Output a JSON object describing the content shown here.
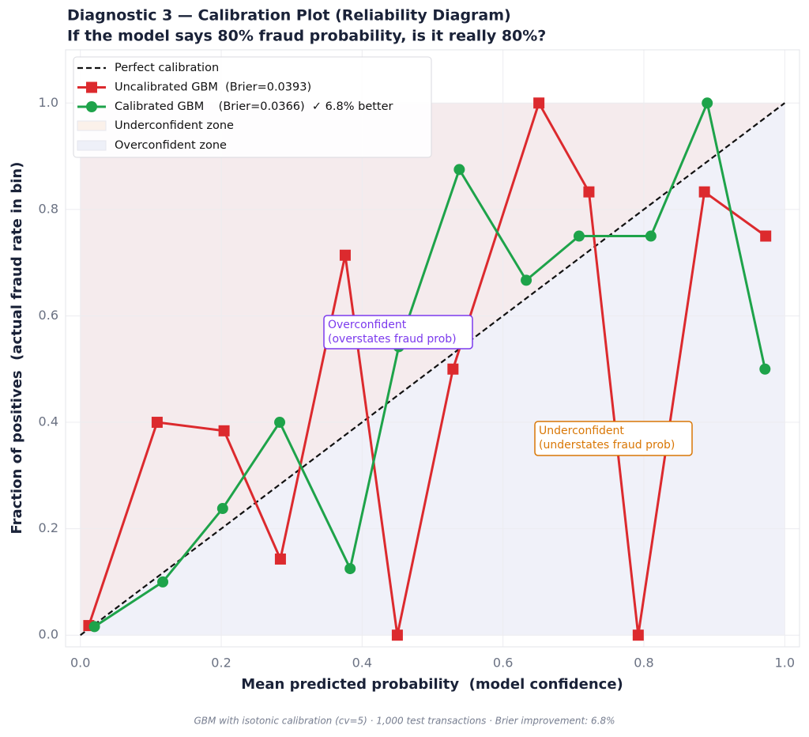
{
  "chart_data": {
    "type": "line",
    "title": "Diagnostic 3 — Calibration Plot (Reliability Diagram)",
    "subtitle": "If the model says 80% fraud probability, is it really 80%?",
    "x_label": "Mean predicted probability  (model confidence)",
    "y_label": "Fraction of positives  (actual fraud rate in bin)",
    "footer": "GBM with isotonic calibration (cv=5) · 1,000 test transactions · Brier improvement: 6.8%",
    "xlim": [
      -0.021,
      1.021
    ],
    "ylim": [
      -0.022,
      1.1
    ],
    "xticks": [
      {
        "value": 0,
        "label": "0.0"
      },
      0.2,
      0.4,
      0.6,
      0.8,
      {
        "value": 1,
        "label": "1.0"
      }
    ],
    "yticks": [
      {
        "value": 0,
        "label": "0.0"
      },
      0.2,
      0.4,
      0.6,
      0.8,
      {
        "value": 1,
        "label": "1.0"
      }
    ],
    "grid": true,
    "legend": "upper left",
    "series": [
      {
        "name": "Perfect calibration",
        "color": "#111111",
        "dash": true,
        "marker": "none",
        "x": [
          0,
          1
        ],
        "values": [
          0,
          1
        ]
      },
      {
        "name": "Uncalibrated GBM  (Brier=0.0393)",
        "color": "#dc2a2e",
        "marker": "square",
        "x": [
          0.012,
          0.109,
          0.204,
          0.284,
          0.376,
          0.45,
          0.529,
          0.651,
          0.722,
          0.792,
          0.886,
          0.973
        ],
        "values": [
          0.018,
          0.4,
          0.384,
          0.143,
          0.714,
          0.0,
          0.5,
          1.0,
          0.833,
          0.0,
          0.833,
          0.75
        ]
      },
      {
        "name": "Calibrated GBM    (Brier=0.0366)  ✓ 6.8% better",
        "color": "#1ea34a",
        "marker": "circle",
        "x": [
          0.02,
          0.117,
          0.202,
          0.283,
          0.383,
          0.452,
          0.538,
          0.633,
          0.708,
          0.81,
          0.89,
          0.972
        ],
        "values": [
          0.016,
          0.1,
          0.238,
          0.4,
          0.125,
          0.542,
          0.875,
          0.667,
          0.75,
          0.75,
          1.0,
          0.5
        ]
      }
    ],
    "zones": [
      {
        "name": "Underconfident zone",
        "color": "#fbf1ea"
      },
      {
        "name": "Overconfident zone",
        "color": "#eef0f8"
      }
    ],
    "annotations": [
      {
        "lines": [
          "Overconfident",
          "(overstates fraud prob)"
        ],
        "color": "#7c3aed"
      },
      {
        "lines": [
          "Underconfident",
          "(understates fraud prob)"
        ],
        "color": "#d97706"
      }
    ]
  }
}
